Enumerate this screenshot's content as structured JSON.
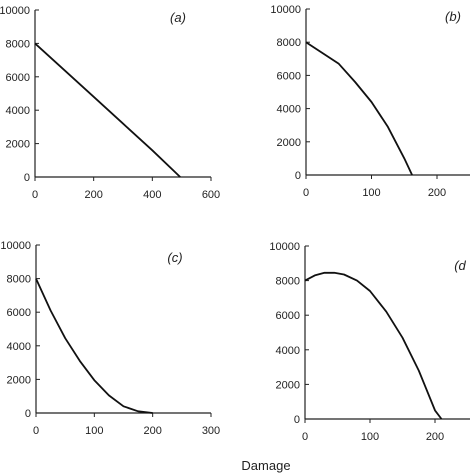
{
  "figure": {
    "xlabel": "Damage"
  },
  "chart_data": [
    {
      "type": "line",
      "panel_label": "(a)",
      "xlim": [
        0,
        600
      ],
      "ylim": [
        0,
        10000
      ],
      "x_ticks": [
        "0",
        "200",
        "400",
        "600"
      ],
      "y_ticks": [
        "0",
        "2000",
        "4000",
        "6000",
        "8000",
        "10000"
      ],
      "series": [
        {
          "x": [
            0,
            100,
            200,
            300,
            400,
            495
          ],
          "y": [
            8000,
            6400,
            4800,
            3200,
            1600,
            0
          ]
        }
      ]
    },
    {
      "type": "line",
      "panel_label": "(b)",
      "xlim": [
        0,
        250
      ],
      "ylim": [
        0,
        10000
      ],
      "x_ticks": [
        "0",
        "100",
        "200"
      ],
      "y_ticks": [
        "0",
        "2000",
        "4000",
        "6000",
        "8000",
        "10000"
      ],
      "series": [
        {
          "x": [
            0,
            50,
            75,
            100,
            125,
            150,
            162
          ],
          "y": [
            8000,
            6700,
            5600,
            4400,
            2900,
            1000,
            0
          ]
        }
      ]
    },
    {
      "type": "line",
      "panel_label": "(c)",
      "xlim": [
        0,
        300
      ],
      "ylim": [
        0,
        10000
      ],
      "x_ticks": [
        "0",
        "100",
        "200",
        "300"
      ],
      "y_ticks": [
        "0",
        "2000",
        "4000",
        "6000",
        "8000",
        "10000"
      ],
      "series": [
        {
          "x": [
            0,
            25,
            50,
            75,
            100,
            125,
            150,
            175,
            200
          ],
          "y": [
            8000,
            6100,
            4450,
            3100,
            1950,
            1050,
            400,
            100,
            0
          ]
        }
      ]
    },
    {
      "type": "line",
      "panel_label": "(d",
      "xlim": [
        0,
        250
      ],
      "ylim": [
        0,
        10000
      ],
      "x_ticks": [
        "0",
        "100",
        "200"
      ],
      "y_ticks": [
        "0",
        "2000",
        "4000",
        "6000",
        "8000",
        "10000"
      ],
      "series": [
        {
          "x": [
            0,
            15,
            30,
            45,
            60,
            80,
            100,
            125,
            150,
            175,
            200,
            210
          ],
          "y": [
            8000,
            8300,
            8450,
            8450,
            8350,
            8000,
            7400,
            6200,
            4700,
            2800,
            500,
            0
          ]
        }
      ]
    }
  ]
}
